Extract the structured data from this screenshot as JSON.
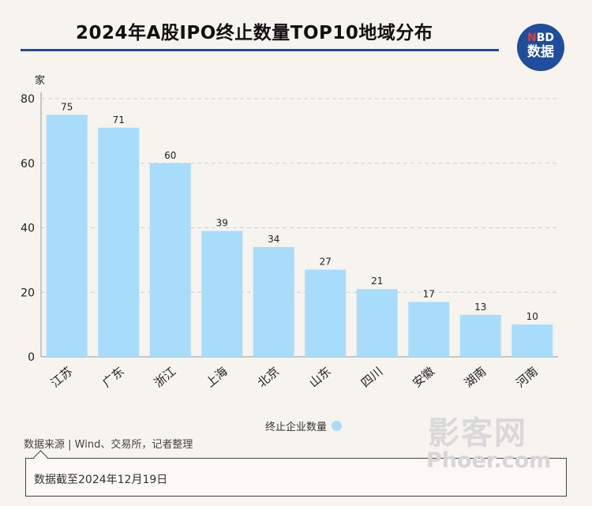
{
  "title": "2024年A股IPO终止数量TOP10地域分布",
  "logo": {
    "brand_prefix": "N",
    "brand_rest": "BD",
    "sub": "数据"
  },
  "chart_data": {
    "type": "bar",
    "title": "2024年A股IPO终止数量TOP10地域分布",
    "ylabel": "家",
    "xlabel": "",
    "ylim": [
      0,
      80
    ],
    "yticks": [
      0,
      20,
      40,
      60,
      80
    ],
    "grid": true,
    "legend_position": "bottom",
    "categories": [
      "江苏",
      "广东",
      "浙江",
      "上海",
      "北京",
      "山东",
      "四川",
      "安徽",
      "湖南",
      "河南"
    ],
    "series": [
      {
        "name": "终止企业数量",
        "color": "#a8dcfb",
        "values": [
          75,
          71,
          60,
          39,
          34,
          27,
          21,
          17,
          13,
          10
        ]
      }
    ]
  },
  "source": "数据来源 | Wind、交易所，记者整理",
  "note": "数据截至2024年12月19日",
  "watermarks": {
    "cn": "影客网",
    "en": "Phoer.com"
  }
}
